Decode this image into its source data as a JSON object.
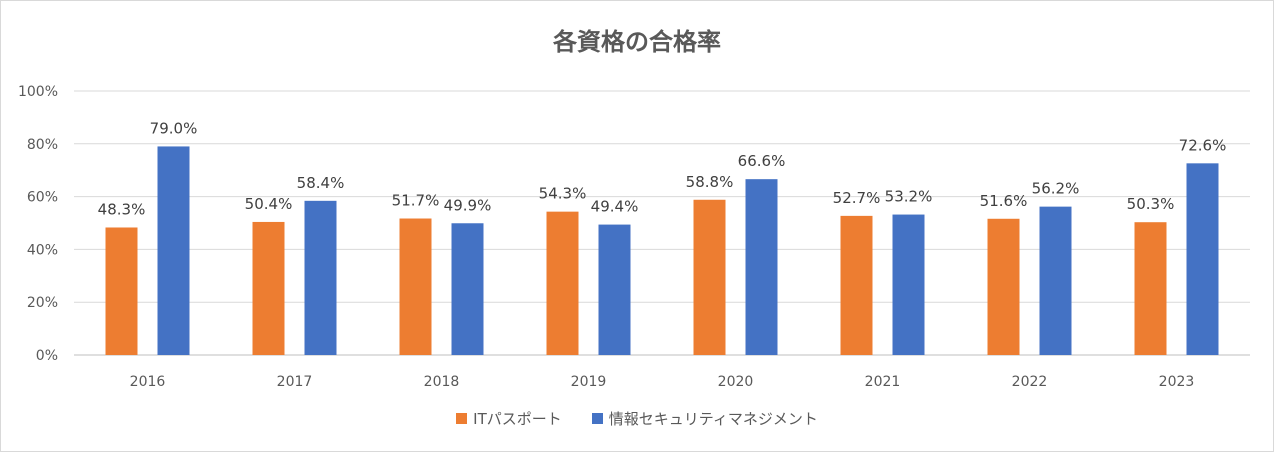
{
  "chart_data": {
    "type": "bar",
    "title": "各資格の合格率",
    "categories": [
      "2016",
      "2017",
      "2018",
      "2019",
      "2020",
      "2021",
      "2022",
      "2023"
    ],
    "series": [
      {
        "name": "ITパスポート",
        "color": "#ED7D31",
        "values": [
          48.3,
          50.4,
          51.7,
          54.3,
          58.8,
          52.7,
          51.6,
          50.3
        ],
        "labels": [
          "48.3%",
          "50.4%",
          "51.7%",
          "54.3%",
          "58.8%",
          "52.7%",
          "51.6%",
          "50.3%"
        ]
      },
      {
        "name": "情報セキュリティマネジメント",
        "color": "#4472C4",
        "values": [
          79.0,
          58.4,
          49.9,
          49.4,
          66.6,
          53.2,
          56.2,
          72.6
        ],
        "labels": [
          "79.0%",
          "58.4%",
          "49.9%",
          "49.4%",
          "66.6%",
          "53.2%",
          "56.2%",
          "72.6%"
        ]
      }
    ],
    "ylim": [
      0,
      100
    ],
    "yticks": [
      0,
      20,
      40,
      60,
      80,
      100
    ],
    "ytick_labels": [
      "0%",
      "20%",
      "40%",
      "60%",
      "80%",
      "100%"
    ],
    "grid": true,
    "legend": "bottom"
  }
}
